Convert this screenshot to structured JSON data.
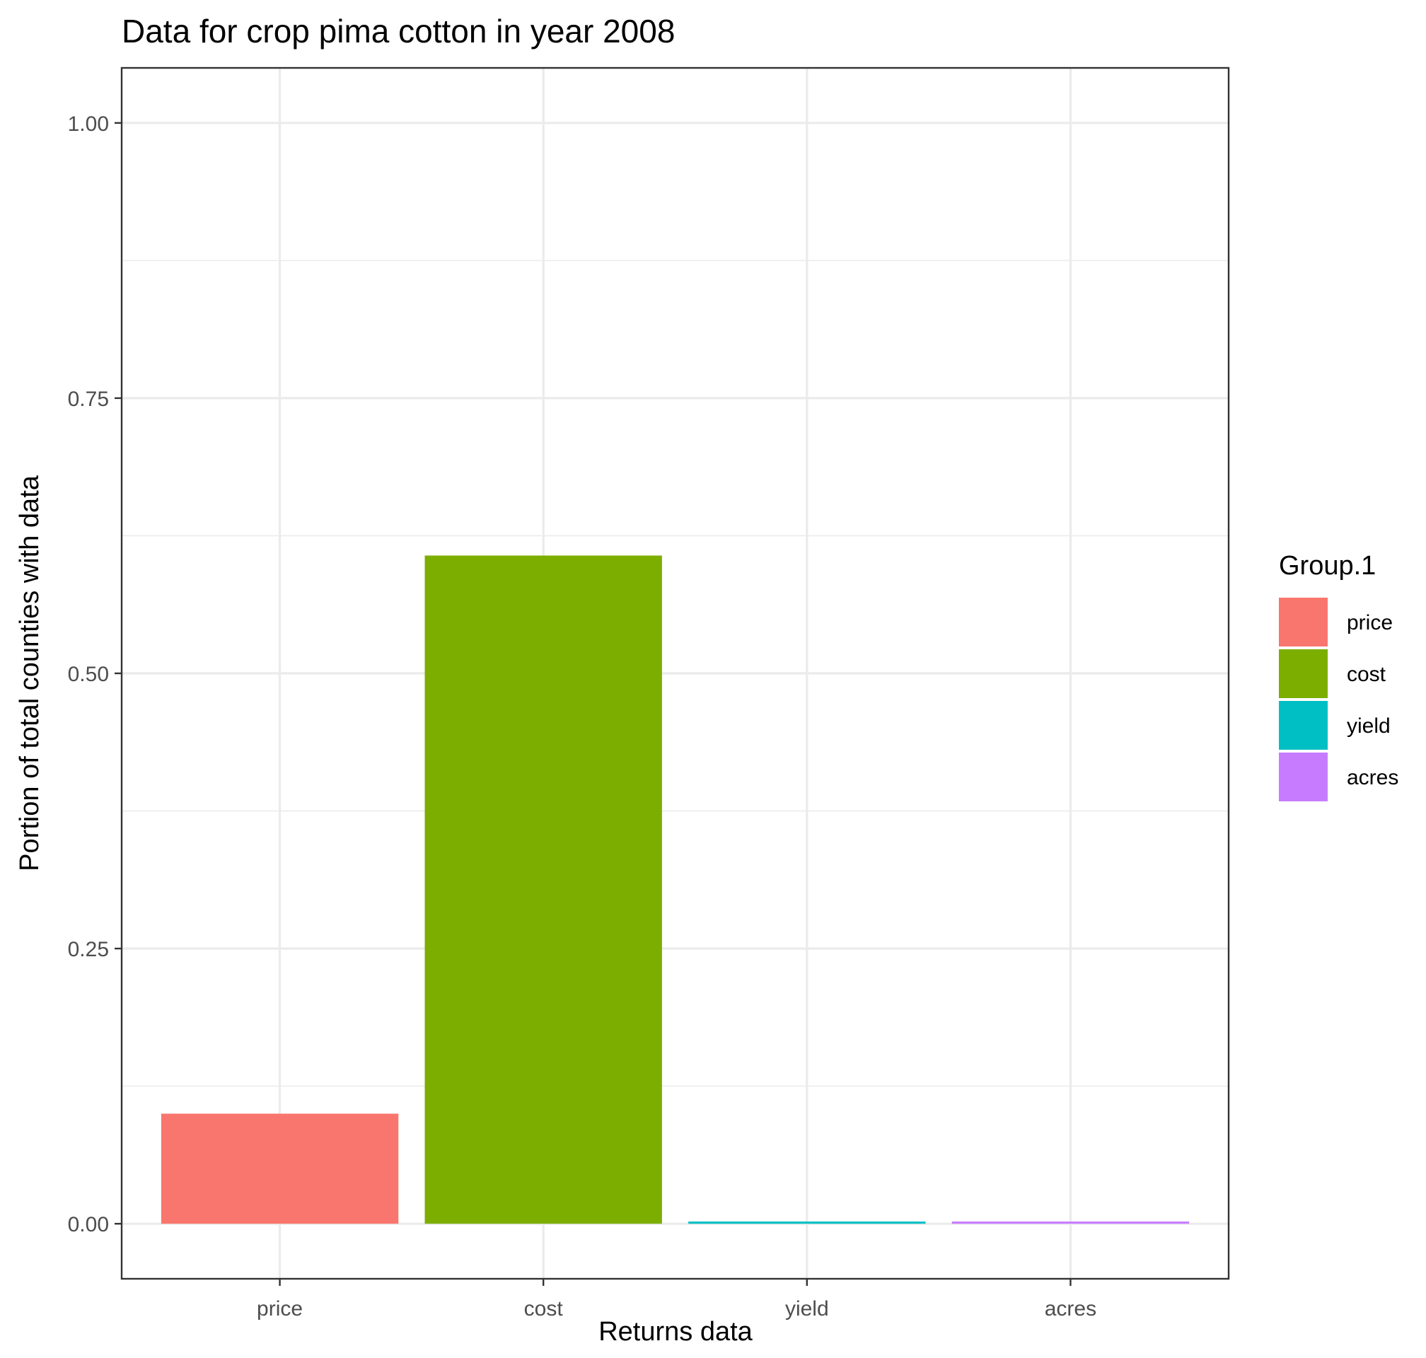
{
  "chart_data": {
    "type": "bar",
    "title": "Data for crop pima cotton in year 2008",
    "xlabel": "Returns data",
    "ylabel": "Portion of total counties with data",
    "categories": [
      "price",
      "cost",
      "yield",
      "acres"
    ],
    "values": [
      0.1,
      0.607,
      0.002,
      0.002
    ],
    "colors": [
      "#F8766D",
      "#7CAE00",
      "#00BFC4",
      "#C77CFF"
    ],
    "ylim": [
      -0.05,
      1.05
    ],
    "yticks": [
      0.0,
      0.25,
      0.5,
      0.75,
      1.0
    ],
    "ytick_labels": [
      "0.00",
      "0.25",
      "0.50",
      "0.75",
      "1.00"
    ],
    "grid": true,
    "legend": {
      "title": "Group.1",
      "position": "right",
      "entries": [
        "price",
        "cost",
        "yield",
        "acres"
      ]
    }
  }
}
